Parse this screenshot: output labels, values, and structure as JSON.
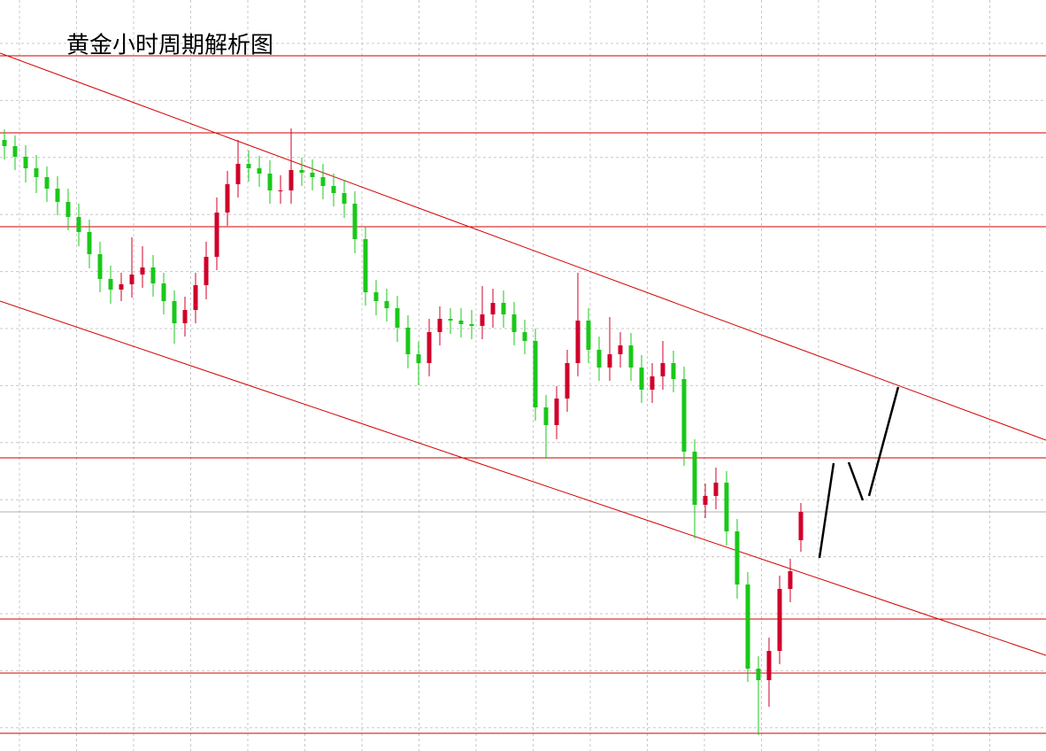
{
  "chart_data": {
    "type": "candlestick",
    "title": "黄金小时周期解析图",
    "ylim": [
      0,
      84.8
    ],
    "grid": true,
    "up_color": "#d0002a",
    "down_color": "#19c819",
    "level_color": "#d00000",
    "current_color": "#b0b0b0",
    "levels": [
      78.5,
      69.8,
      59.2,
      33.1,
      14.9,
      8.8,
      2.0
    ],
    "current_price": 27.0,
    "candles": {
      "open": [
        69.0,
        68.3,
        67.1,
        65.8,
        64.8,
        63.5,
        62.0,
        60.3,
        58.6,
        56.1,
        53.3,
        52.1,
        52.7,
        53.8,
        54.6,
        52.8,
        50.8,
        48.3,
        49.8,
        52.6,
        55.8,
        60.8,
        64.0,
        66.3,
        65.8,
        65.2,
        63.3,
        63.3,
        65.6,
        65.3,
        64.8,
        63.8,
        63.0,
        61.8,
        57.8,
        51.8,
        50.8,
        50.0,
        47.8,
        44.8,
        43.8,
        47.3,
        48.8,
        48.6,
        48.2,
        48.0,
        49.3,
        50.6,
        49.3,
        47.3,
        46.3,
        38.8,
        36.8,
        39.8,
        43.8,
        48.6,
        45.3,
        43.3,
        44.8,
        45.8,
        43.3,
        40.8,
        42.3,
        43.8,
        42.0,
        33.8,
        27.8,
        28.8,
        30.3,
        24.8,
        18.8,
        9.3,
        8.0,
        11.3,
        18.3,
        23.8
      ],
      "high": [
        70.2,
        69.5,
        68.4,
        67.3,
        66.0,
        64.9,
        63.5,
        61.8,
        60.0,
        57.5,
        54.8,
        54.0,
        58.0,
        57.0,
        56.0,
        54.0,
        52.0,
        51.3,
        54.0,
        57.5,
        62.5,
        65.5,
        69.0,
        67.8,
        67.2,
        66.7,
        65.0,
        70.3,
        67.0,
        66.8,
        66.3,
        65.2,
        64.5,
        63.2,
        59.2,
        53.2,
        52.2,
        51.4,
        49.2,
        46.2,
        48.8,
        50.2,
        50.0,
        50.0,
        49.8,
        52.5,
        52.2,
        52.0,
        50.7,
        48.7,
        47.7,
        40.2,
        41.2,
        45.3,
        54.0,
        50.0,
        46.8,
        49.0,
        47.3,
        47.2,
        44.7,
        43.8,
        46.3,
        45.2,
        43.4,
        35.2,
        30.2,
        32.0,
        31.6,
        26.2,
        20.2,
        10.7,
        12.8,
        19.8,
        21.7,
        28.0
      ],
      "low": [
        66.8,
        65.6,
        64.2,
        63.0,
        62.0,
        60.5,
        58.8,
        57.0,
        54.5,
        51.8,
        50.5,
        50.8,
        51.2,
        52.3,
        51.3,
        49.3,
        46.0,
        46.8,
        48.3,
        51.0,
        54.3,
        59.3,
        62.5,
        64.3,
        63.7,
        61.8,
        61.8,
        61.8,
        63.8,
        63.3,
        62.3,
        61.5,
        60.2,
        56.2,
        50.3,
        49.2,
        48.5,
        46.2,
        43.2,
        41.3,
        42.3,
        45.8,
        47.1,
        46.7,
        46.5,
        46.5,
        47.8,
        47.8,
        45.8,
        44.8,
        37.3,
        33.0,
        35.2,
        38.3,
        42.3,
        43.8,
        41.8,
        41.8,
        43.3,
        41.8,
        39.3,
        39.3,
        40.8,
        40.5,
        32.2,
        24.0,
        26.3,
        27.3,
        23.2,
        17.2,
        7.8,
        1.8,
        5.0,
        9.8,
        16.8,
        22.5
      ],
      "close": [
        68.3,
        67.1,
        65.8,
        64.8,
        63.5,
        62.0,
        60.3,
        58.6,
        56.1,
        53.3,
        52.1,
        52.7,
        53.8,
        54.6,
        52.8,
        50.8,
        48.3,
        49.8,
        52.6,
        55.8,
        60.8,
        64.0,
        66.3,
        65.8,
        65.2,
        63.3,
        63.3,
        65.6,
        65.3,
        64.8,
        63.8,
        63.0,
        61.8,
        57.8,
        51.8,
        50.8,
        50.0,
        47.8,
        44.8,
        43.8,
        47.3,
        48.8,
        48.6,
        48.2,
        48.0,
        49.3,
        50.6,
        49.3,
        47.3,
        46.3,
        38.8,
        36.8,
        39.8,
        43.8,
        48.6,
        45.3,
        43.3,
        44.8,
        45.8,
        43.3,
        40.8,
        42.3,
        43.8,
        42.0,
        33.8,
        27.8,
        28.8,
        30.3,
        24.8,
        18.8,
        9.3,
        8.0,
        11.3,
        18.3,
        20.3,
        27.0
      ]
    }
  }
}
